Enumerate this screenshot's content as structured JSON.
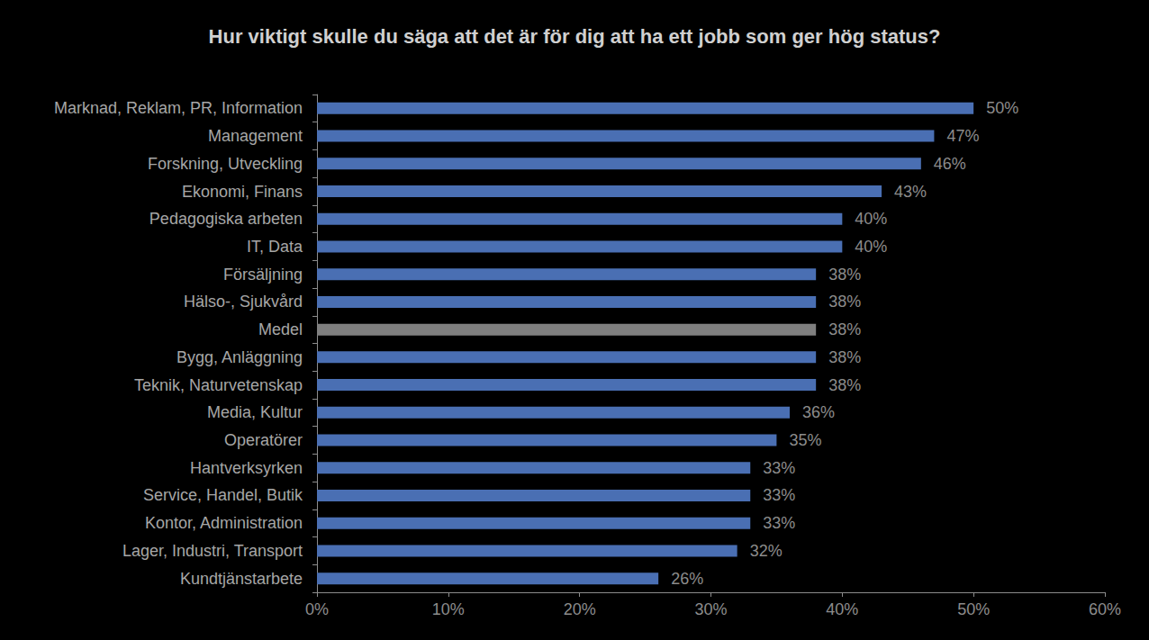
{
  "chart_data": {
    "type": "bar",
    "orientation": "horizontal",
    "title": "Hur viktigt skulle du säga att det är för dig att ha ett jobb som ger hög status?",
    "categories": [
      "Marknad, Reklam, PR, Information",
      "Management",
      "Forskning, Utveckling",
      "Ekonomi, Finans",
      "Pedagogiska arbeten",
      "IT, Data",
      "Försäljning",
      "Hälso-, Sjukvård",
      "Medel",
      "Bygg, Anläggning",
      "Teknik, Naturvetenskap",
      "Media, Kultur",
      "Operatörer",
      "Hantverksyrken",
      "Service, Handel, Butik",
      "Kontor, Administration",
      "Lager, Industri, Transport",
      "Kundtjänstarbete"
    ],
    "values": [
      50,
      47,
      46,
      43,
      40,
      40,
      38,
      38,
      38,
      38,
      38,
      36,
      35,
      33,
      33,
      33,
      32,
      26
    ],
    "value_labels": [
      "50%",
      "47%",
      "46%",
      "43%",
      "40%",
      "40%",
      "38%",
      "38%",
      "38%",
      "38%",
      "38%",
      "36%",
      "35%",
      "33%",
      "33%",
      "33%",
      "32%",
      "26%"
    ],
    "colors": [
      "#4a6fb3",
      "#4a6fb3",
      "#4a6fb3",
      "#4a6fb3",
      "#4a6fb3",
      "#4a6fb3",
      "#4a6fb3",
      "#4a6fb3",
      "#7f7f7f",
      "#4a6fb3",
      "#4a6fb3",
      "#4a6fb3",
      "#4a6fb3",
      "#4a6fb3",
      "#4a6fb3",
      "#4a6fb3",
      "#4a6fb3",
      "#4a6fb3"
    ],
    "xlim": [
      0,
      60
    ],
    "xticks": [
      {
        "value": 0,
        "label": "0%"
      },
      {
        "value": 10,
        "label": "10%"
      },
      {
        "value": 20,
        "label": "20%"
      },
      {
        "value": 30,
        "label": "30%"
      },
      {
        "value": 40,
        "label": "40%"
      },
      {
        "value": 50,
        "label": "50%"
      },
      {
        "value": 60,
        "label": "60%"
      }
    ],
    "grid": false,
    "data_labels": true
  }
}
